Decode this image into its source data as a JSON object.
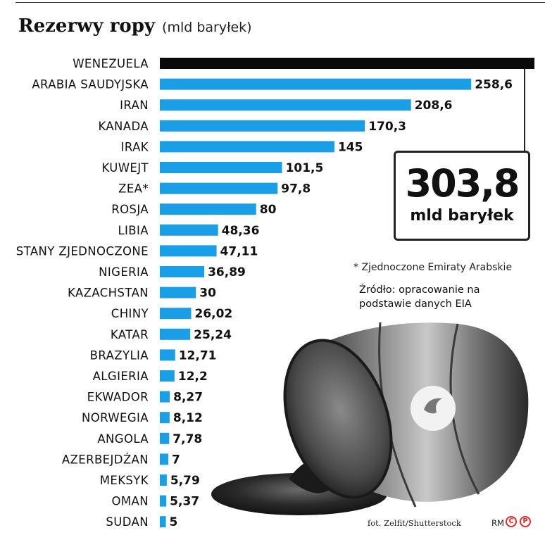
{
  "header": {
    "title": "Rezerwy ropy",
    "unit": "(mld baryłek)"
  },
  "chart_data": {
    "type": "bar",
    "orientation": "horizontal",
    "title": "Rezerwy ropy",
    "unit": "(mld baryłek)",
    "categories": [
      "WENEZUELA",
      "ARABIA SAUDYJSKA",
      "IRAN",
      "KANADA",
      "IRAK",
      "KUWEJT",
      "ZEA*",
      "ROSJA",
      "LIBIA",
      "STANY ZJEDNOCZONE",
      "NIGERIA",
      "KAZACHSTAN",
      "CHINY",
      "KATAR",
      "BRAZYLIA",
      "ALGIERIA",
      "EKWADOR",
      "NORWEGIA",
      "ANGOLA",
      "AZERBEJDŻAN",
      "MEKSYK",
      "OMAN",
      "SUDAN"
    ],
    "values": [
      303.8,
      258.6,
      208.6,
      170.3,
      145,
      101.5,
      97.8,
      80,
      48.36,
      47.11,
      36.89,
      30,
      26.02,
      25.24,
      12.71,
      12.2,
      8.27,
      8.12,
      7.78,
      7,
      5.79,
      5.37,
      5
    ],
    "value_labels": [
      "",
      "258,6",
      "208,6",
      "170,3",
      "145",
      "101,5",
      "97,8",
      "80",
      "48,36",
      "47,11",
      "36,89",
      "30",
      "26,02",
      "25,24",
      "12,71",
      "12,2",
      "8,27",
      "8,12",
      "7,78",
      "7",
      "5,79",
      "5,37",
      "5"
    ],
    "highlight_index": 0,
    "colors": {
      "bar": "#1a9ee6",
      "highlight": "#0a0a0a"
    },
    "grid": false,
    "legend": "none"
  },
  "callout": {
    "value": "303,8",
    "unit": "mld baryłek"
  },
  "notes": {
    "footnote": "* Zjednoczone Emiraty Arabskie",
    "source": "Źródło: opracowanie na podstawie danych EIA",
    "photo_credit": "fot. Zelfit/Shutterstock",
    "rm": "RM",
    "logo_c": "C",
    "logo_p": "P"
  }
}
